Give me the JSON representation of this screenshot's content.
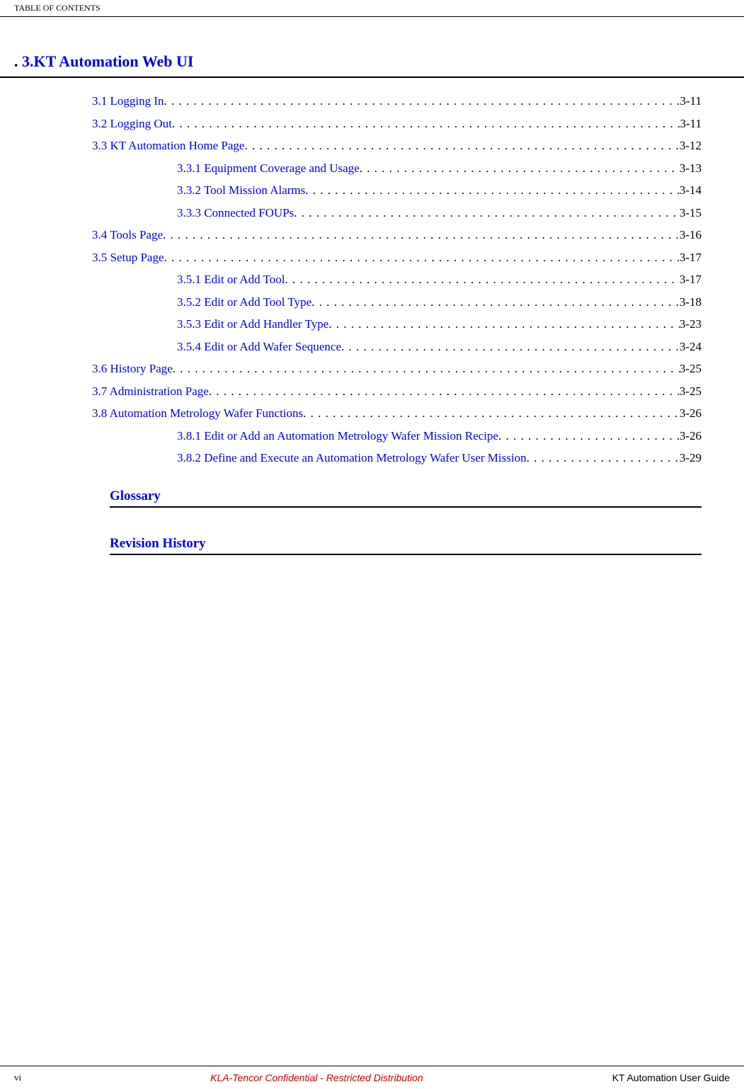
{
  "header": {
    "title": "TABLE OF CONTENTS"
  },
  "chapter": {
    "prefix": ". ",
    "number": "3.",
    "title": "KT Automation Web UI"
  },
  "toc_entries": [
    {
      "level": 1,
      "title": "3.1 Logging In",
      "page": "3-11"
    },
    {
      "level": 1,
      "title": "3.2 Logging Out",
      "page": "3-11"
    },
    {
      "level": 1,
      "title": "3.3 KT Automation Home Page",
      "page": "3-12"
    },
    {
      "level": 2,
      "title": "3.3.1 Equipment Coverage and Usage",
      "page": "3-13"
    },
    {
      "level": 2,
      "title": "3.3.2 Tool Mission Alarms",
      "page": "3-14"
    },
    {
      "level": 2,
      "title": "3.3.3 Connected FOUPs",
      "page": "3-15"
    },
    {
      "level": 1,
      "title": "3.4 Tools Page",
      "page": "3-16"
    },
    {
      "level": 1,
      "title": "3.5 Setup Page",
      "page": "3-17"
    },
    {
      "level": 2,
      "title": "3.5.1 Edit or Add Tool",
      "page": "3-17"
    },
    {
      "level": 2,
      "title": "3.5.2 Edit or Add Tool Type",
      "page": "3-18"
    },
    {
      "level": 2,
      "title": "3.5.3 Edit or Add Handler Type",
      "page": "3-23"
    },
    {
      "level": 2,
      "title": "3.5.4 Edit or Add Wafer Sequence",
      "page": "3-24"
    },
    {
      "level": 1,
      "title": "3.6 History Page",
      "page": "3-25"
    },
    {
      "level": 1,
      "title": "3.7 Administration Page",
      "page": "3-25"
    },
    {
      "level": 1,
      "title": "3.8 Automation Metrology Wafer Functions",
      "page": "3-26"
    },
    {
      "level": 2,
      "title": "3.8.1 Edit or Add an Automation Metrology Wafer Mission Recipe",
      "page": "3-26"
    },
    {
      "level": 2,
      "title": "3.8.2 Define and Execute an Automation Metrology Wafer User Mission",
      "page": "3-29"
    }
  ],
  "sections": [
    {
      "title": "Glossary"
    },
    {
      "title": "Revision History"
    }
  ],
  "footer": {
    "left": "vi",
    "center": "KLA-Tencor Confidential - Restricted Distribution",
    "right": "KT Automation User Guide"
  },
  "colors": {
    "link_color": "#0000dd",
    "text_color": "#000000",
    "confidential_color": "#cc0000",
    "background": "#ffffff"
  },
  "typography": {
    "body_font": "Georgia, Times New Roman, serif",
    "footer_font": "Arial, sans-serif",
    "header_fontsize": 12,
    "chapter_fontsize": 22,
    "toc_fontsize": 17,
    "section_fontsize": 19,
    "footer_fontsize": 14
  }
}
